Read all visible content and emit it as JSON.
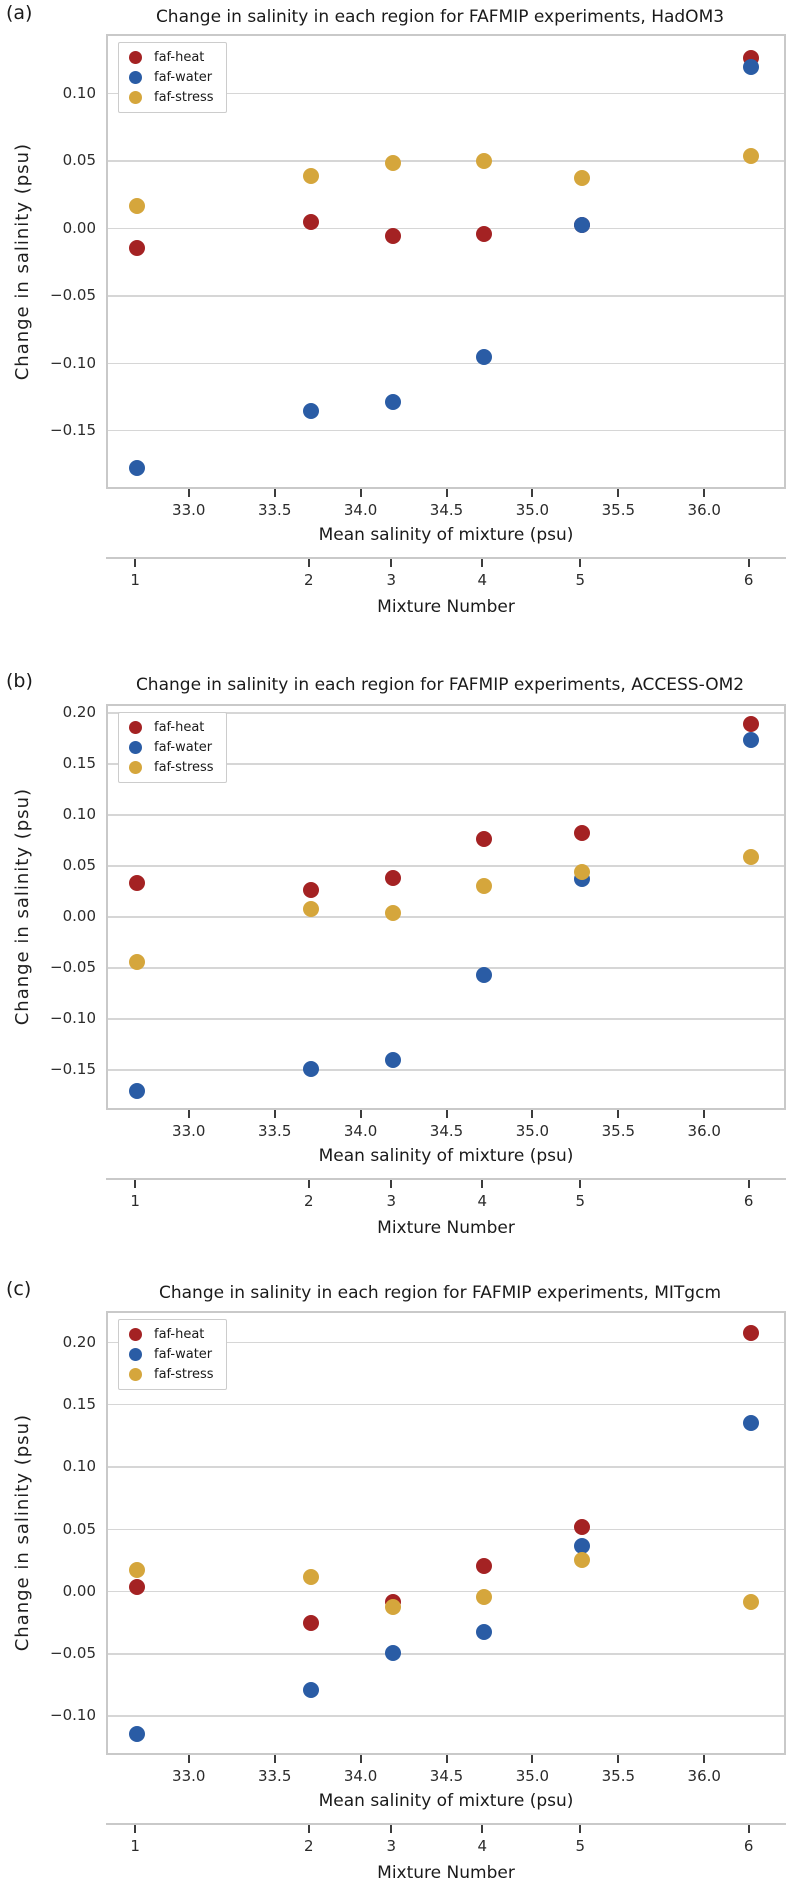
{
  "figure": {
    "panel_labels": [
      "(a)",
      "(b)",
      "(c)"
    ],
    "colors": {
      "faf_heat": "#a42223",
      "faf_water": "#2a5ca5",
      "faf_stress": "#d5a63c"
    }
  },
  "chart_data": [
    {
      "type": "scatter",
      "panel_label": "(a)",
      "title": "Change in salinity in each region for FAFMIP experiments, HadOM3",
      "xlabel": "Mean salinity of mixture (psu)",
      "ylabel": "Change in salinity (psu)",
      "xlabel2": "Mixture Number",
      "grid": true,
      "legend_position": "upper left",
      "xlim": [
        32.53,
        36.47
      ],
      "ylim": [
        -0.193,
        0.142
      ],
      "xticks": [
        33.0,
        33.5,
        34.0,
        34.5,
        35.0,
        35.5,
        36.0
      ],
      "yticks": [
        0.1,
        0.05,
        0.0,
        -0.05,
        -0.1,
        -0.15
      ],
      "x": [
        32.7,
        33.71,
        34.19,
        34.72,
        35.29,
        36.27
      ],
      "mixture_numbers": [
        1,
        2,
        3,
        4,
        5,
        6
      ],
      "series": [
        {
          "name": "faf-heat",
          "color": "#a42223",
          "values": [
            -0.015,
            0.004,
            -0.006,
            -0.005,
            0.002,
            0.126
          ]
        },
        {
          "name": "faf-water",
          "color": "#2a5ca5",
          "values": [
            -0.178,
            -0.136,
            -0.129,
            -0.096,
            0.002,
            0.119
          ]
        },
        {
          "name": "faf-stress",
          "color": "#d5a63c",
          "values": [
            0.016,
            0.038,
            0.048,
            0.049,
            0.037,
            0.053
          ]
        }
      ]
    },
    {
      "type": "scatter",
      "panel_label": "(b)",
      "title": "Change in salinity in each region for FAFMIP experiments, ACCESS-OM2",
      "xlabel": "Mean salinity of mixture (psu)",
      "ylabel": "Change in salinity (psu)",
      "xlabel2": "Mixture Number",
      "grid": true,
      "legend_position": "upper left",
      "xlim": [
        32.53,
        36.47
      ],
      "ylim": [
        -0.189,
        0.206
      ],
      "xticks": [
        33.0,
        33.5,
        34.0,
        34.5,
        35.0,
        35.5,
        36.0
      ],
      "yticks": [
        0.2,
        0.15,
        0.1,
        0.05,
        0.0,
        -0.05,
        -0.1,
        -0.15
      ],
      "x": [
        32.7,
        33.71,
        34.19,
        34.72,
        35.29,
        36.27
      ],
      "mixture_numbers": [
        1,
        2,
        3,
        4,
        5,
        6
      ],
      "series": [
        {
          "name": "faf-heat",
          "color": "#a42223",
          "values": [
            0.033,
            0.026,
            0.037,
            0.076,
            0.082,
            0.188
          ]
        },
        {
          "name": "faf-water",
          "color": "#2a5ca5",
          "values": [
            -0.171,
            -0.15,
            -0.141,
            -0.058,
            0.036,
            0.173
          ]
        },
        {
          "name": "faf-stress",
          "color": "#d5a63c",
          "values": [
            -0.045,
            0.007,
            0.003,
            0.03,
            0.043,
            0.058
          ]
        }
      ]
    },
    {
      "type": "scatter",
      "panel_label": "(c)",
      "title": "Change in salinity in each region for FAFMIP experiments, MITgcm",
      "xlabel": "Mean salinity of mixture (psu)",
      "ylabel": "Change in salinity (psu)",
      "xlabel2": "Mixture Number",
      "grid": true,
      "legend_position": "upper left",
      "xlim": [
        32.53,
        36.47
      ],
      "ylim": [
        -0.131,
        0.223
      ],
      "xticks": [
        33.0,
        33.5,
        34.0,
        34.5,
        35.0,
        35.5,
        36.0
      ],
      "yticks": [
        0.2,
        0.15,
        0.1,
        0.05,
        0.0,
        -0.05,
        -0.1
      ],
      "x": [
        32.7,
        33.71,
        34.19,
        34.72,
        35.29,
        36.27
      ],
      "mixture_numbers": [
        1,
        2,
        3,
        4,
        5,
        6
      ],
      "series": [
        {
          "name": "faf-heat",
          "color": "#a42223",
          "values": [
            0.003,
            -0.026,
            -0.009,
            0.02,
            0.051,
            0.207
          ]
        },
        {
          "name": "faf-water",
          "color": "#2a5ca5",
          "values": [
            -0.115,
            -0.08,
            -0.05,
            -0.033,
            0.036,
            0.135
          ]
        },
        {
          "name": "faf-stress",
          "color": "#d5a63c",
          "values": [
            0.017,
            0.011,
            -0.013,
            -0.005,
            0.025,
            -0.009
          ]
        }
      ]
    }
  ]
}
